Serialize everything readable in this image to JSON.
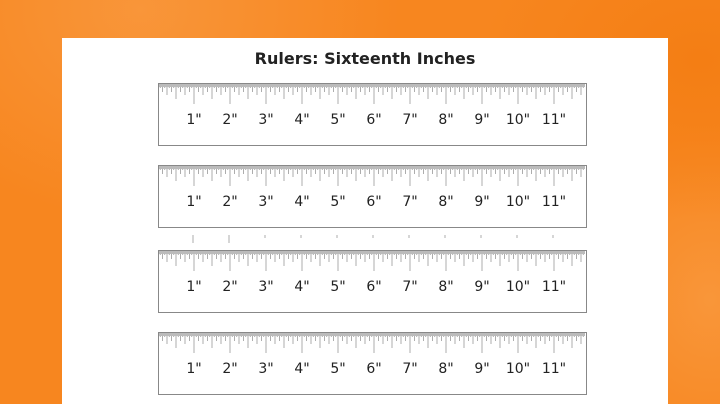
{
  "title": "Rulers: Sixteenth Inches",
  "colors": {
    "background": "#f7861f",
    "paper": "#ffffff",
    "tick": "#999999"
  },
  "rulers": [
    {
      "labels": [
        "1\"",
        "2\"",
        "3\"",
        "4\"",
        "5\"",
        "6\"",
        "7\"",
        "8\"",
        "9\"",
        "10\"",
        "11\""
      ]
    },
    {
      "labels": [
        "1\"",
        "2\"",
        "3\"",
        "4\"",
        "5\"",
        "6\"",
        "7\"",
        "8\"",
        "9\"",
        "10\"",
        "11\""
      ]
    },
    {
      "labels": [
        "1\"",
        "2\"",
        "3\"",
        "4\"",
        "5\"",
        "6\"",
        "7\"",
        "8\"",
        "9\"",
        "10\"",
        "11\""
      ]
    },
    {
      "labels": [
        "1\"",
        "2\"",
        "3\"",
        "4\"",
        "5\"",
        "6\"",
        "7\"",
        "8\"",
        "9\"",
        "10\"",
        "11\""
      ]
    }
  ],
  "subdivisions_per_inch": 16
}
